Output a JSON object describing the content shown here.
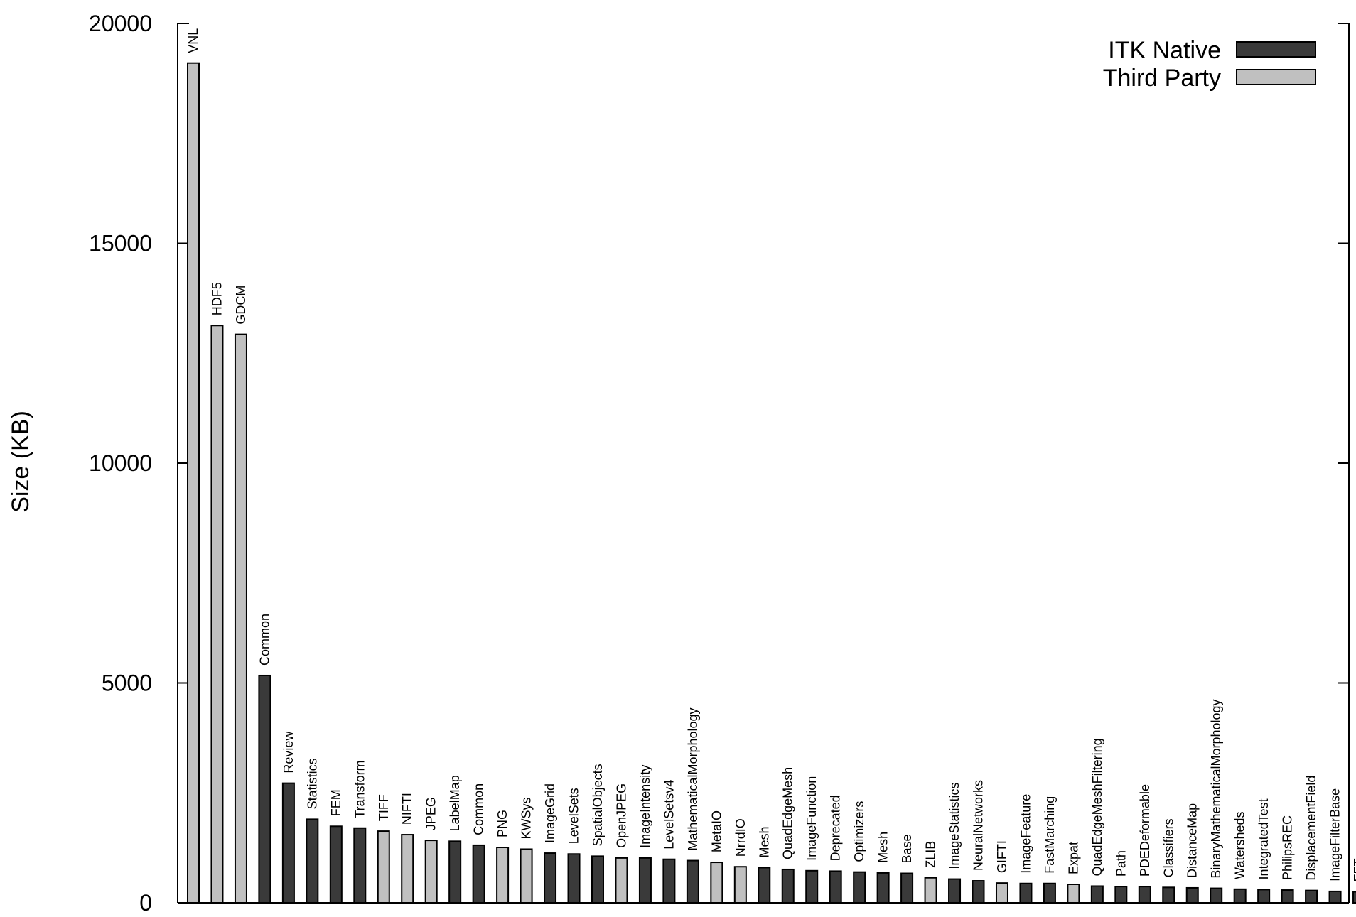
{
  "chart_data": {
    "type": "bar",
    "ylabel": "Size (KB)",
    "xlabel": "",
    "ylim": [
      0,
      20000
    ],
    "yticks": [
      0,
      5000,
      10000,
      15000,
      20000
    ],
    "legend": {
      "placement": "top-right"
    },
    "colors": {
      "ITK Native": "#3a3a3a",
      "Third Party": "#c0c0c0"
    },
    "series": [
      {
        "name": "ITK Native"
      },
      {
        "name": "Third Party"
      }
    ],
    "bars": [
      {
        "label": "VNL",
        "value": 19100,
        "group": "Third Party"
      },
      {
        "label": "HDF5",
        "value": 13130,
        "group": "Third Party"
      },
      {
        "label": "GDCM",
        "value": 12930,
        "group": "Third Party"
      },
      {
        "label": "Common",
        "value": 5170,
        "group": "ITK Native"
      },
      {
        "label": "Review",
        "value": 2720,
        "group": "ITK Native"
      },
      {
        "label": "Statistics",
        "value": 1900,
        "group": "ITK Native"
      },
      {
        "label": "FEM",
        "value": 1740,
        "group": "ITK Native"
      },
      {
        "label": "Transform",
        "value": 1700,
        "group": "ITK Native"
      },
      {
        "label": "TIFF",
        "value": 1630,
        "group": "Third Party"
      },
      {
        "label": "NIFTI",
        "value": 1550,
        "group": "Third Party"
      },
      {
        "label": "JPEG",
        "value": 1420,
        "group": "Third Party"
      },
      {
        "label": "LabelMap",
        "value": 1400,
        "group": "ITK Native"
      },
      {
        "label": "Common",
        "value": 1310,
        "group": "ITK Native"
      },
      {
        "label": "PNG",
        "value": 1260,
        "group": "Third Party"
      },
      {
        "label": "KWSys",
        "value": 1220,
        "group": "Third Party"
      },
      {
        "label": "ImageGrid",
        "value": 1130,
        "group": "ITK Native"
      },
      {
        "label": "LevelSets",
        "value": 1110,
        "group": "ITK Native"
      },
      {
        "label": "SpatialObjects",
        "value": 1060,
        "group": "ITK Native"
      },
      {
        "label": "OpenJPEG",
        "value": 1020,
        "group": "Third Party"
      },
      {
        "label": "ImageIntensity",
        "value": 1020,
        "group": "ITK Native"
      },
      {
        "label": "LevelSetsv4",
        "value": 990,
        "group": "ITK Native"
      },
      {
        "label": "MathematicalMorphology",
        "value": 960,
        "group": "ITK Native"
      },
      {
        "label": "MetaIO",
        "value": 920,
        "group": "Third Party"
      },
      {
        "label": "NrrdIO",
        "value": 820,
        "group": "Third Party"
      },
      {
        "label": "Mesh",
        "value": 800,
        "group": "ITK Native"
      },
      {
        "label": "QuadEdgeMesh",
        "value": 760,
        "group": "ITK Native"
      },
      {
        "label": "ImageFunction",
        "value": 730,
        "group": "ITK Native"
      },
      {
        "label": "Deprecated",
        "value": 720,
        "group": "ITK Native"
      },
      {
        "label": "Optimizers",
        "value": 700,
        "group": "ITK Native"
      },
      {
        "label": "Mesh",
        "value": 680,
        "group": "ITK Native"
      },
      {
        "label": "Base",
        "value": 670,
        "group": "ITK Native"
      },
      {
        "label": "ZLIB",
        "value": 570,
        "group": "Third Party"
      },
      {
        "label": "ImageStatistics",
        "value": 540,
        "group": "ITK Native"
      },
      {
        "label": "NeuralNetworks",
        "value": 500,
        "group": "ITK Native"
      },
      {
        "label": "GIFTI",
        "value": 450,
        "group": "Third Party"
      },
      {
        "label": "ImageFeature",
        "value": 440,
        "group": "ITK Native"
      },
      {
        "label": "FastMarching",
        "value": 440,
        "group": "ITK Native"
      },
      {
        "label": "Expat",
        "value": 420,
        "group": "Third Party"
      },
      {
        "label": "QuadEdgeMeshFiltering",
        "value": 380,
        "group": "ITK Native"
      },
      {
        "label": "Path",
        "value": 370,
        "group": "ITK Native"
      },
      {
        "label": "PDEDeformable",
        "value": 370,
        "group": "ITK Native"
      },
      {
        "label": "Classifiers",
        "value": 350,
        "group": "ITK Native"
      },
      {
        "label": "DistanceMap",
        "value": 340,
        "group": "ITK Native"
      },
      {
        "label": "BinaryMathematicalMorphology",
        "value": 330,
        "group": "ITK Native"
      },
      {
        "label": "Watersheds",
        "value": 310,
        "group": "ITK Native"
      },
      {
        "label": "IntegratedTest",
        "value": 300,
        "group": "ITK Native"
      },
      {
        "label": "PhilipsREC",
        "value": 290,
        "group": "ITK Native"
      },
      {
        "label": "DisplacementField",
        "value": 280,
        "group": "ITK Native"
      },
      {
        "label": "ImageFilterBase",
        "value": 260,
        "group": "ITK Native"
      },
      {
        "label": "FFT",
        "value": 250,
        "group": "ITK Native"
      }
    ]
  }
}
